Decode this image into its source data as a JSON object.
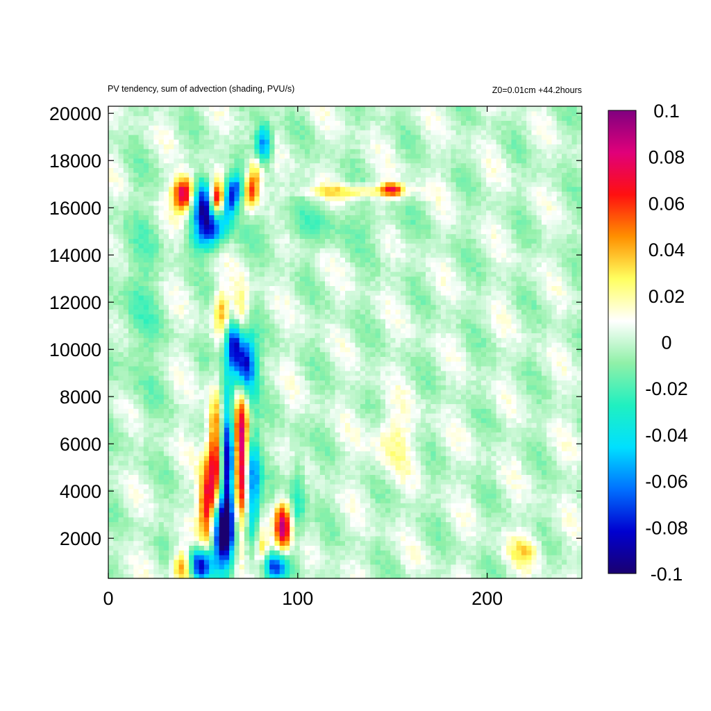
{
  "chart_data": {
    "type": "heatmap",
    "title": "PV tendency, sum of advection (shading, PVU/s)",
    "subtitle": "Z0=0.01cm   +44.2hours",
    "xlabel": "",
    "ylabel": "",
    "xlim": [
      0,
      250
    ],
    "ylim": [
      300,
      20300
    ],
    "x_ticks": [
      0,
      100,
      200
    ],
    "y_ticks": [
      2000,
      4000,
      6000,
      8000,
      10000,
      12000,
      14000,
      16000,
      18000,
      20000
    ],
    "x_tick_labels": [
      "0",
      "100",
      "200"
    ],
    "y_tick_labels": [
      "2000",
      "4000",
      "6000",
      "8000",
      "10000",
      "12000",
      "14000",
      "16000",
      "18000",
      "20000"
    ],
    "colorbar": {
      "range": [
        -0.1,
        0.1
      ],
      "ticks": [
        0.1,
        0.08,
        0.06,
        0.04,
        0.02,
        0,
        -0.02,
        -0.04,
        -0.06,
        -0.08,
        -0.1
      ],
      "tick_labels": [
        "0.1",
        "0.08",
        "0.06",
        "0.04",
        "0.02",
        "0",
        "-0.02",
        "-0.04",
        "-0.06",
        "-0.08",
        "-0.1"
      ],
      "colors": [
        "#1a0070",
        "#0000d0",
        "#0070ff",
        "#00e0ff",
        "#20f0c0",
        "#90f0a8",
        "#ffffff",
        "#ffff60",
        "#ff9000",
        "#ff1010",
        "#e0007a",
        "#800080"
      ]
    },
    "grid": false,
    "features": [
      {
        "x": 72,
        "y": 9400,
        "sx": 4,
        "sy": 900,
        "v": -0.1
      },
      {
        "x": 66,
        "y": 10300,
        "sx": 3,
        "sy": 700,
        "v": -0.08
      },
      {
        "x": 60,
        "y": 11600,
        "sx": 3,
        "sy": 700,
        "v": 0.04
      },
      {
        "x": 70,
        "y": 11600,
        "sx": 3,
        "sy": 800,
        "v": 0.03
      },
      {
        "x": 63,
        "y": 5200,
        "sx": 3,
        "sy": 2200,
        "v": -0.1
      },
      {
        "x": 57,
        "y": 5500,
        "sx": 3,
        "sy": 1800,
        "v": 0.08
      },
      {
        "x": 70,
        "y": 5600,
        "sx": 3,
        "sy": 2200,
        "v": 0.09
      },
      {
        "x": 76,
        "y": 4200,
        "sx": 3,
        "sy": 1800,
        "v": -0.07
      },
      {
        "x": 52,
        "y": 3300,
        "sx": 3,
        "sy": 1200,
        "v": 0.07
      },
      {
        "x": 60,
        "y": 2200,
        "sx": 4,
        "sy": 1000,
        "v": -0.1
      },
      {
        "x": 48,
        "y": 900,
        "sx": 5,
        "sy": 500,
        "v": -0.1
      },
      {
        "x": 40,
        "y": 800,
        "sx": 4,
        "sy": 500,
        "v": 0.07
      },
      {
        "x": 92,
        "y": 2500,
        "sx": 3,
        "sy": 700,
        "v": 0.09
      },
      {
        "x": 88,
        "y": 800,
        "sx": 5,
        "sy": 400,
        "v": -0.07
      },
      {
        "x": 81,
        "y": 1600,
        "sx": 3,
        "sy": 700,
        "v": 0.04
      },
      {
        "x": 100,
        "y": 3600,
        "sx": 3,
        "sy": 1500,
        "v": -0.03
      },
      {
        "x": 40,
        "y": 16600,
        "sx": 4,
        "sy": 500,
        "v": 0.09
      },
      {
        "x": 50,
        "y": 16200,
        "sx": 4,
        "sy": 700,
        "v": -0.08
      },
      {
        "x": 58,
        "y": 16400,
        "sx": 3,
        "sy": 500,
        "v": 0.09
      },
      {
        "x": 63,
        "y": 16300,
        "sx": 3,
        "sy": 600,
        "v": -0.08
      },
      {
        "x": 68,
        "y": 16800,
        "sx": 3,
        "sy": 500,
        "v": -0.06
      },
      {
        "x": 75,
        "y": 16700,
        "sx": 3,
        "sy": 500,
        "v": 0.06
      },
      {
        "x": 82,
        "y": 18700,
        "sx": 3,
        "sy": 600,
        "v": -0.07
      },
      {
        "x": 78,
        "y": 17600,
        "sx": 3,
        "sy": 500,
        "v": 0.04
      },
      {
        "x": 55,
        "y": 15200,
        "sx": 5,
        "sy": 500,
        "v": -0.05
      },
      {
        "x": 50,
        "y": 14700,
        "sx": 6,
        "sy": 500,
        "v": -0.03
      },
      {
        "x": 130,
        "y": 16700,
        "sx": 20,
        "sy": 200,
        "v": 0.03
      },
      {
        "x": 150,
        "y": 16800,
        "sx": 4,
        "sy": 200,
        "v": 0.06
      },
      {
        "x": 150,
        "y": 6200,
        "sx": 8,
        "sy": 900,
        "v": 0.02
      },
      {
        "x": 220,
        "y": 1500,
        "sx": 6,
        "sy": 500,
        "v": 0.025
      },
      {
        "x": 15,
        "y": 12000,
        "sx": 8,
        "sy": 3000,
        "v": -0.015
      },
      {
        "x": 110,
        "y": 15300,
        "sx": 30,
        "sy": 600,
        "v": -0.012
      }
    ]
  }
}
